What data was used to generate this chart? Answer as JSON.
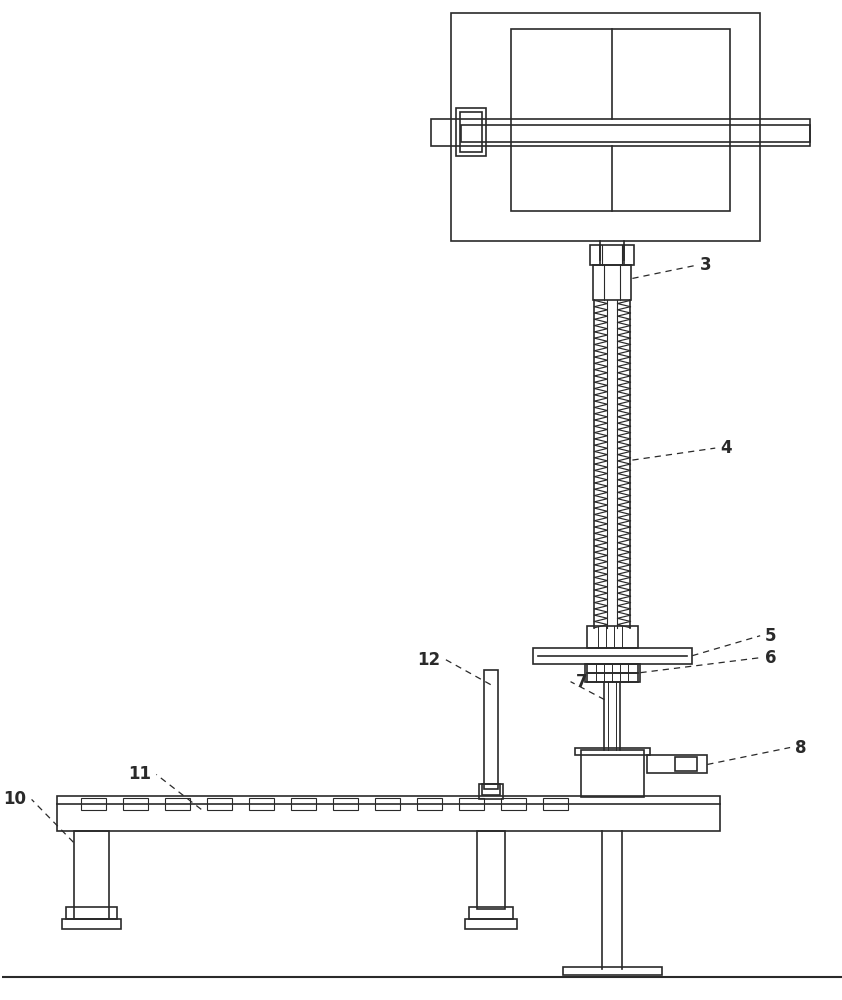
{
  "bg_color": "#ffffff",
  "line_color": "#2a2a2a",
  "line_width": 1.2,
  "fig_width": 8.42,
  "fig_height": 10.0,
  "dpi": 100
}
